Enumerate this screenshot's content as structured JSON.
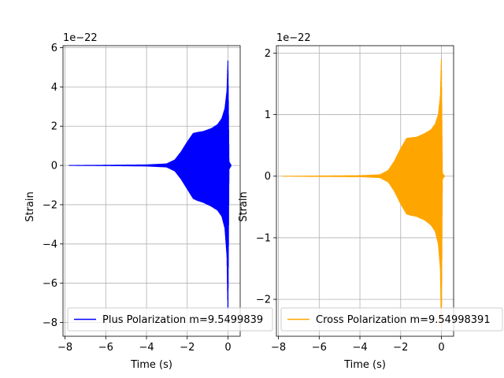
{
  "chart_data": [
    {
      "type": "line",
      "title": "",
      "xlabel": "Time (s)",
      "ylabel": "Strain",
      "offset_text": "1e−22",
      "xlim": [
        -8.1,
        0.6
      ],
      "ylim": [
        -8.7,
        6.1
      ],
      "xticks": [
        -8,
        -6,
        -4,
        -2,
        0
      ],
      "xtick_labels": [
        "−8",
        "−6",
        "−4",
        "−2",
        "0"
      ],
      "yticks": [
        -8,
        -6,
        -4,
        -2,
        0,
        2,
        4,
        6
      ],
      "ytick_labels": [
        "−8",
        "−6",
        "−4",
        "−2",
        "0",
        "2",
        "4",
        "6"
      ],
      "grid": true,
      "legend_placement": "lower-left",
      "series": [
        {
          "name": "Plus Polarization m=9.5499839",
          "color": "#0000ff",
          "x_range": [
            -7.8,
            0.15
          ],
          "envelope": {
            "x": [
              -7.8,
              -6.0,
              -4.0,
              -3.0,
              -2.6,
              -2.3,
              -2.0,
              -1.7,
              -1.5,
              -1.2,
              -0.8,
              -0.5,
              -0.3,
              -0.15,
              -0.05,
              0.0,
              0.05,
              0.15
            ],
            "upper": [
              0.02,
              0.03,
              0.05,
              0.1,
              0.3,
              0.7,
              1.2,
              1.65,
              1.7,
              1.75,
              1.9,
              2.1,
              2.4,
              2.9,
              3.8,
              5.4,
              0.2,
              0.02
            ],
            "lower": [
              -0.02,
              -0.03,
              -0.05,
              -0.1,
              -0.3,
              -0.7,
              -1.2,
              -1.7,
              -1.8,
              -1.9,
              -2.1,
              -2.3,
              -2.6,
              -3.2,
              -4.6,
              -7.6,
              -0.2,
              -0.02
            ]
          }
        }
      ]
    },
    {
      "type": "line",
      "title": "",
      "xlabel": "Time (s)",
      "ylabel": "Strain",
      "offset_text": "1e−22",
      "xlim": [
        -8.1,
        0.6
      ],
      "ylim": [
        -2.6,
        2.12
      ],
      "xticks": [
        -8,
        -6,
        -4,
        -2,
        0
      ],
      "xtick_labels": [
        "−8",
        "−6",
        "−4",
        "−2",
        "0"
      ],
      "yticks": [
        -2,
        -1,
        0,
        1,
        2
      ],
      "ytick_labels": [
        "−2",
        "−1",
        "0",
        "1",
        "2"
      ],
      "grid": true,
      "legend_placement": "lower-left",
      "series": [
        {
          "name": "Cross Polarization m=9.54998391",
          "color": "#ffa500",
          "x_range": [
            -7.8,
            0.15
          ],
          "envelope": {
            "x": [
              -7.8,
              -6.0,
              -4.0,
              -3.0,
              -2.6,
              -2.3,
              -2.0,
              -1.7,
              -1.5,
              -1.2,
              -0.8,
              -0.5,
              -0.3,
              -0.15,
              -0.05,
              0.0,
              0.05,
              0.15
            ],
            "upper": [
              0.005,
              0.01,
              0.015,
              0.03,
              0.1,
              0.25,
              0.45,
              0.62,
              0.63,
              0.64,
              0.7,
              0.76,
              0.85,
              1.0,
              1.3,
              1.92,
              0.05,
              0.005
            ],
            "lower": [
              -0.005,
              -0.01,
              -0.015,
              -0.03,
              -0.1,
              -0.25,
              -0.45,
              -0.62,
              -0.64,
              -0.66,
              -0.72,
              -0.8,
              -0.9,
              -1.1,
              -1.5,
              -2.55,
              -0.05,
              -0.005
            ]
          }
        }
      ]
    }
  ]
}
